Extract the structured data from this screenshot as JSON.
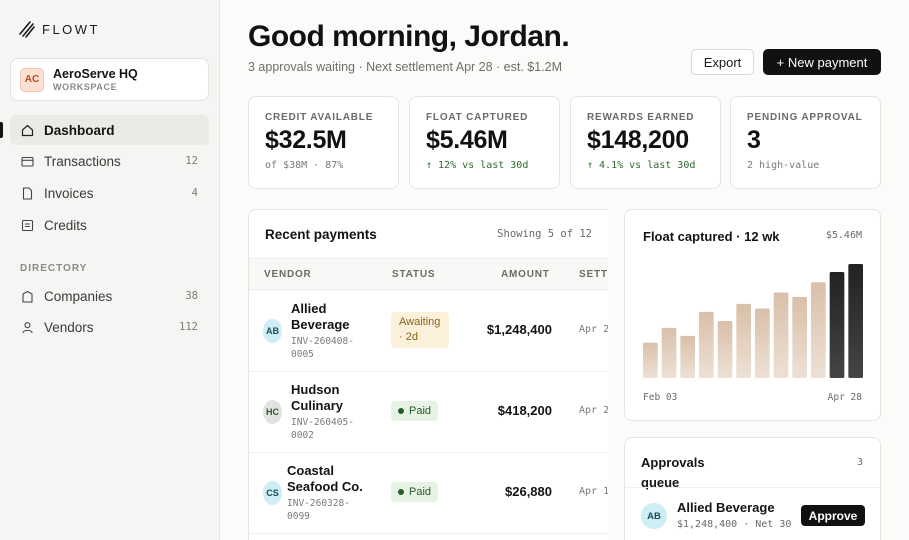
{
  "brand": {
    "name": "FLOWT",
    "icon": "flowt-logo-icon"
  },
  "workspace": {
    "initials": "AC",
    "name": "AeroServe HQ",
    "type": "WORKSPACE"
  },
  "nav": {
    "items": [
      {
        "label": "Dashboard",
        "icon": "home-icon",
        "count": ""
      },
      {
        "label": "Transactions",
        "icon": "card-icon",
        "count": "12"
      },
      {
        "label": "Invoices",
        "icon": "file-icon",
        "count": "4"
      },
      {
        "label": "Credits",
        "icon": "receipt-icon",
        "count": ""
      }
    ],
    "directory_label": "DIRECTORY",
    "directory": [
      {
        "label": "Companies",
        "icon": "building-icon",
        "count": "38"
      },
      {
        "label": "Vendors",
        "icon": "person-icon",
        "count": "112"
      }
    ]
  },
  "header": {
    "greeting": "Good morning, Jordan.",
    "subline": "3 approvals waiting · Next settlement Apr 28 · est. $1.2M",
    "export_label": "Export",
    "new_payment_label": "+ New payment"
  },
  "stats": [
    {
      "label": "CREDIT AVAILABLE",
      "value": "$32.5M",
      "sub": "of $38M · 87%"
    },
    {
      "label": "FLOAT CAPTURED",
      "value": "$5.46M",
      "sub": "↑ 12% vs last 30d"
    },
    {
      "label": "REWARDS EARNED",
      "value": "$148,200",
      "sub": "↑ 4.1% vs last 30d"
    },
    {
      "label": "PENDING APPROVAL",
      "value": "3",
      "sub": "2 high-value"
    }
  ],
  "payments": {
    "title": "Recent payments",
    "showing": "Showing 5 of 12",
    "columns": [
      "VENDOR",
      "STATUS",
      "AMOUNT",
      "SETT"
    ],
    "rows": [
      {
        "initials": "AB",
        "vendor": "Allied Beverage",
        "invoice": "INV-260408-0005",
        "status": "Awaiting · 2d",
        "amount": "$1,248,400",
        "date": "Apr 2"
      },
      {
        "initials": "HC",
        "vendor": "Hudson Culinary",
        "invoice": "INV-260405-0002",
        "status": "Paid",
        "amount": "$418,200",
        "date": "Apr 2"
      },
      {
        "initials": "CS",
        "vendor": "Coastal Seafood Co.",
        "invoice": "INV-260328-0099",
        "status": "Paid",
        "amount": "$26,880",
        "date": "Apr 1"
      }
    ]
  },
  "float": {
    "title": "Float captured · 12 wk",
    "total": "$5.46M",
    "x_start": "Feb 03",
    "x_end": "Apr 28"
  },
  "chart_data": {
    "type": "bar",
    "title": "Float captured · 12 wk",
    "categories": [
      "W1",
      "W2",
      "W3",
      "W4",
      "W5",
      "W6",
      "W7",
      "W8",
      "W9",
      "W10",
      "W11",
      "W12"
    ],
    "values": [
      31,
      44,
      37,
      58,
      50,
      65,
      61,
      75,
      71,
      84,
      93,
      100
    ],
    "highlight_from_index": 10,
    "ylim": [
      0,
      100
    ],
    "colors": {
      "light": "#d9bfa8",
      "light_top": "#e8d7c7",
      "dark": "#2a2a2a"
    }
  },
  "approvals": {
    "title": "Approvals queue",
    "count": "3",
    "items": [
      {
        "initials": "AB",
        "name": "Allied Beverage",
        "meta": "$1,248,400 · Net 30",
        "action": "Approve"
      }
    ]
  }
}
